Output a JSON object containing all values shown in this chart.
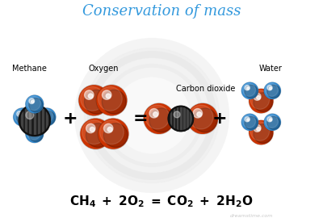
{
  "title": "Conservation of mass",
  "title_color": "#3399dd",
  "title_fontsize": 13,
  "background_color": "#ffffff",
  "label_methane": "Methane",
  "label_oxygen": "Oxygen",
  "label_co2": "Carbon dioxide",
  "label_water": "Water",
  "red_dark": "#b83000",
  "red_mid": "#cc3300",
  "red_light": "#dd5533",
  "black_dark": "#111111",
  "black_mid": "#222222",
  "gray_dark": "#444444",
  "gray_mid": "#666666",
  "gray_light": "#888888",
  "blue_dark": "#2266aa",
  "blue_mid": "#3388cc",
  "blue_light": "#55aaee",
  "watermark_color": "#bbbbbb",
  "bg_circle_color": "#dddddd"
}
